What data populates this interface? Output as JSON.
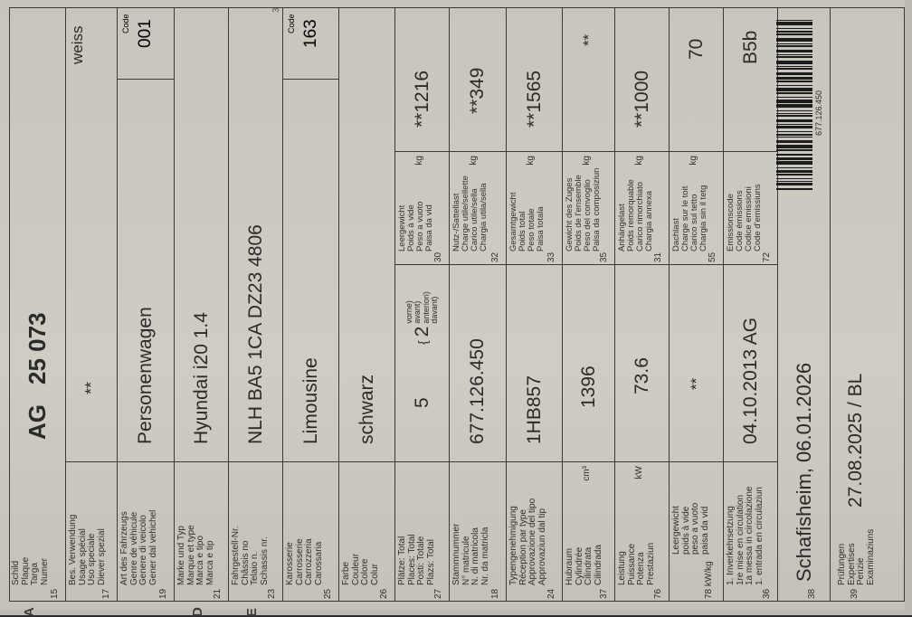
{
  "margin": {
    "A": "A",
    "D": "D",
    "E": "E",
    "page": "3"
  },
  "r15": {
    "num": "15",
    "lines": [
      "Schild",
      "Plaque",
      "Targa",
      "Numer"
    ],
    "canton": "AG",
    "plate": "25 073"
  },
  "r17": {
    "num": "17",
    "lines": [
      "Bes. Verwendung",
      "Usage spécial",
      "Uso speciale",
      "Diever spezial"
    ],
    "value": "**",
    "note": "weiss"
  },
  "r19": {
    "num": "19",
    "lines": [
      "Art des Fahrzeugs",
      "Genre de véhicule",
      "Genere di veicolo",
      "Gener dal vehichel"
    ],
    "value": "Personenwagen",
    "code_label": "Code",
    "code": "001"
  },
  "r21": {
    "num": "21",
    "lines": [
      "Marke und Typ",
      "Marque et type",
      "Marca e tipo",
      "Marca e tip"
    ],
    "value": "Hyundai i20 1.4"
  },
  "r23": {
    "num": "23",
    "lines": [
      "Fahrgestell-Nr.",
      "Châssis no",
      "Telaio n.",
      "Schassis nr."
    ],
    "value": "NLH BA5 1CA DZ23 4806"
  },
  "r25": {
    "num": "25",
    "lines": [
      "Karosserie",
      "Carrosserie",
      "Carrozzeria",
      "Carossaria"
    ],
    "value": "Limousine",
    "code_label": "Code",
    "code": "163"
  },
  "r26": {
    "num": "26",
    "lines": [
      "Farbe",
      "Couleur",
      "Colore",
      "Colur"
    ],
    "value": "schwarz"
  },
  "r27": {
    "num": "27",
    "lines": [
      "Plätze:   Total",
      "Places:   Total",
      "Posti:   Totale",
      "Plazs:   Total"
    ],
    "value": "5",
    "front": "2",
    "front_lines": [
      "vorne)",
      "avant)",
      "anteriori)",
      "davant)"
    ],
    "sub": {
      "num": "30",
      "lines": [
        "Leergewicht",
        "Poids à vide",
        "Peso a vuoto",
        "Paisa da vid"
      ],
      "unit": "kg"
    },
    "value2": "**1216"
  },
  "r18": {
    "num": "18",
    "lines": [
      "Stammnummer",
      "N° matricule",
      "N. di matricola",
      "Nr. da matricla"
    ],
    "value": "677.126.450",
    "sub": {
      "num": "32",
      "lines": [
        "Nutz-/Sattellast",
        "Charge utile/sellette",
        "Carico utile/sella",
        "Chargia utila/sella"
      ],
      "unit": "kg"
    },
    "value2": "**349"
  },
  "r24": {
    "num": "24",
    "lines": [
      "Typengenehmigung",
      "Réception par type",
      "Approvazione del tipo",
      "Approvaziun dal tip"
    ],
    "value": "1HB857",
    "sub": {
      "num": "33",
      "lines": [
        "Gesamtgewicht",
        "Poids total",
        "Peso totale",
        "Paisa totala"
      ],
      "unit": "kg"
    },
    "value2": "**1565"
  },
  "r37": {
    "num": "37",
    "lines": [
      "Hubraum",
      "Cylindrée",
      "Cilindrata",
      "Cilindrada"
    ],
    "unit": "cm³",
    "value": "1396",
    "sub": {
      "num": "35",
      "lines": [
        "Gewicht des Zuges",
        "Poids de l'ensemble",
        "Peso del convoglio",
        "Paisa da composiziun"
      ],
      "unit": "kg"
    },
    "value2": "**"
  },
  "r76": {
    "num": "76",
    "lines": [
      "Leistung",
      "Puissance",
      "Potenza",
      "Prestaziun"
    ],
    "unit": "kW",
    "value": "73.6",
    "sub": {
      "num": "31",
      "lines": [
        "Anhängelast",
        "Poids remorquable",
        "Carico rimorchiato",
        "Chargia annexa"
      ],
      "unit": "kg"
    },
    "value2": "**1000"
  },
  "r78": {
    "num": "78",
    "prefix": "kW/kg",
    "lines": [
      "Leergewicht",
      "poids à vide",
      "peso a vuoto",
      "paisa da vid"
    ],
    "value": "**",
    "sub": {
      "num": "55",
      "lines": [
        "Dachlast",
        "Charge sur le toit",
        "Carico sul tetto",
        "Chargia sin il tetg"
      ],
      "unit": "kg"
    },
    "value2": "70"
  },
  "r36": {
    "num": "36",
    "lines": [
      "1. Inverkehrsetzung",
      "1re mise en circulation",
      "1a messa in circolazione",
      "1. entrada en circulaziun"
    ],
    "value": "04.10.2013 AG",
    "sub": {
      "num": "72",
      "lines": [
        "Emissionscode",
        "Code émissions",
        "Codice emissioni",
        "Code d'emissiuns"
      ]
    },
    "value2": "B5b"
  },
  "r38": {
    "num": "38",
    "value": "Schafisheim, 06.01.2026",
    "barcode_text": "677.126.450"
  },
  "r39": {
    "num": "39",
    "lines": [
      "Prüfungen",
      "Expertises",
      "Perizie",
      "Examinaziuns"
    ],
    "value": "27.08.2025 / BL"
  }
}
